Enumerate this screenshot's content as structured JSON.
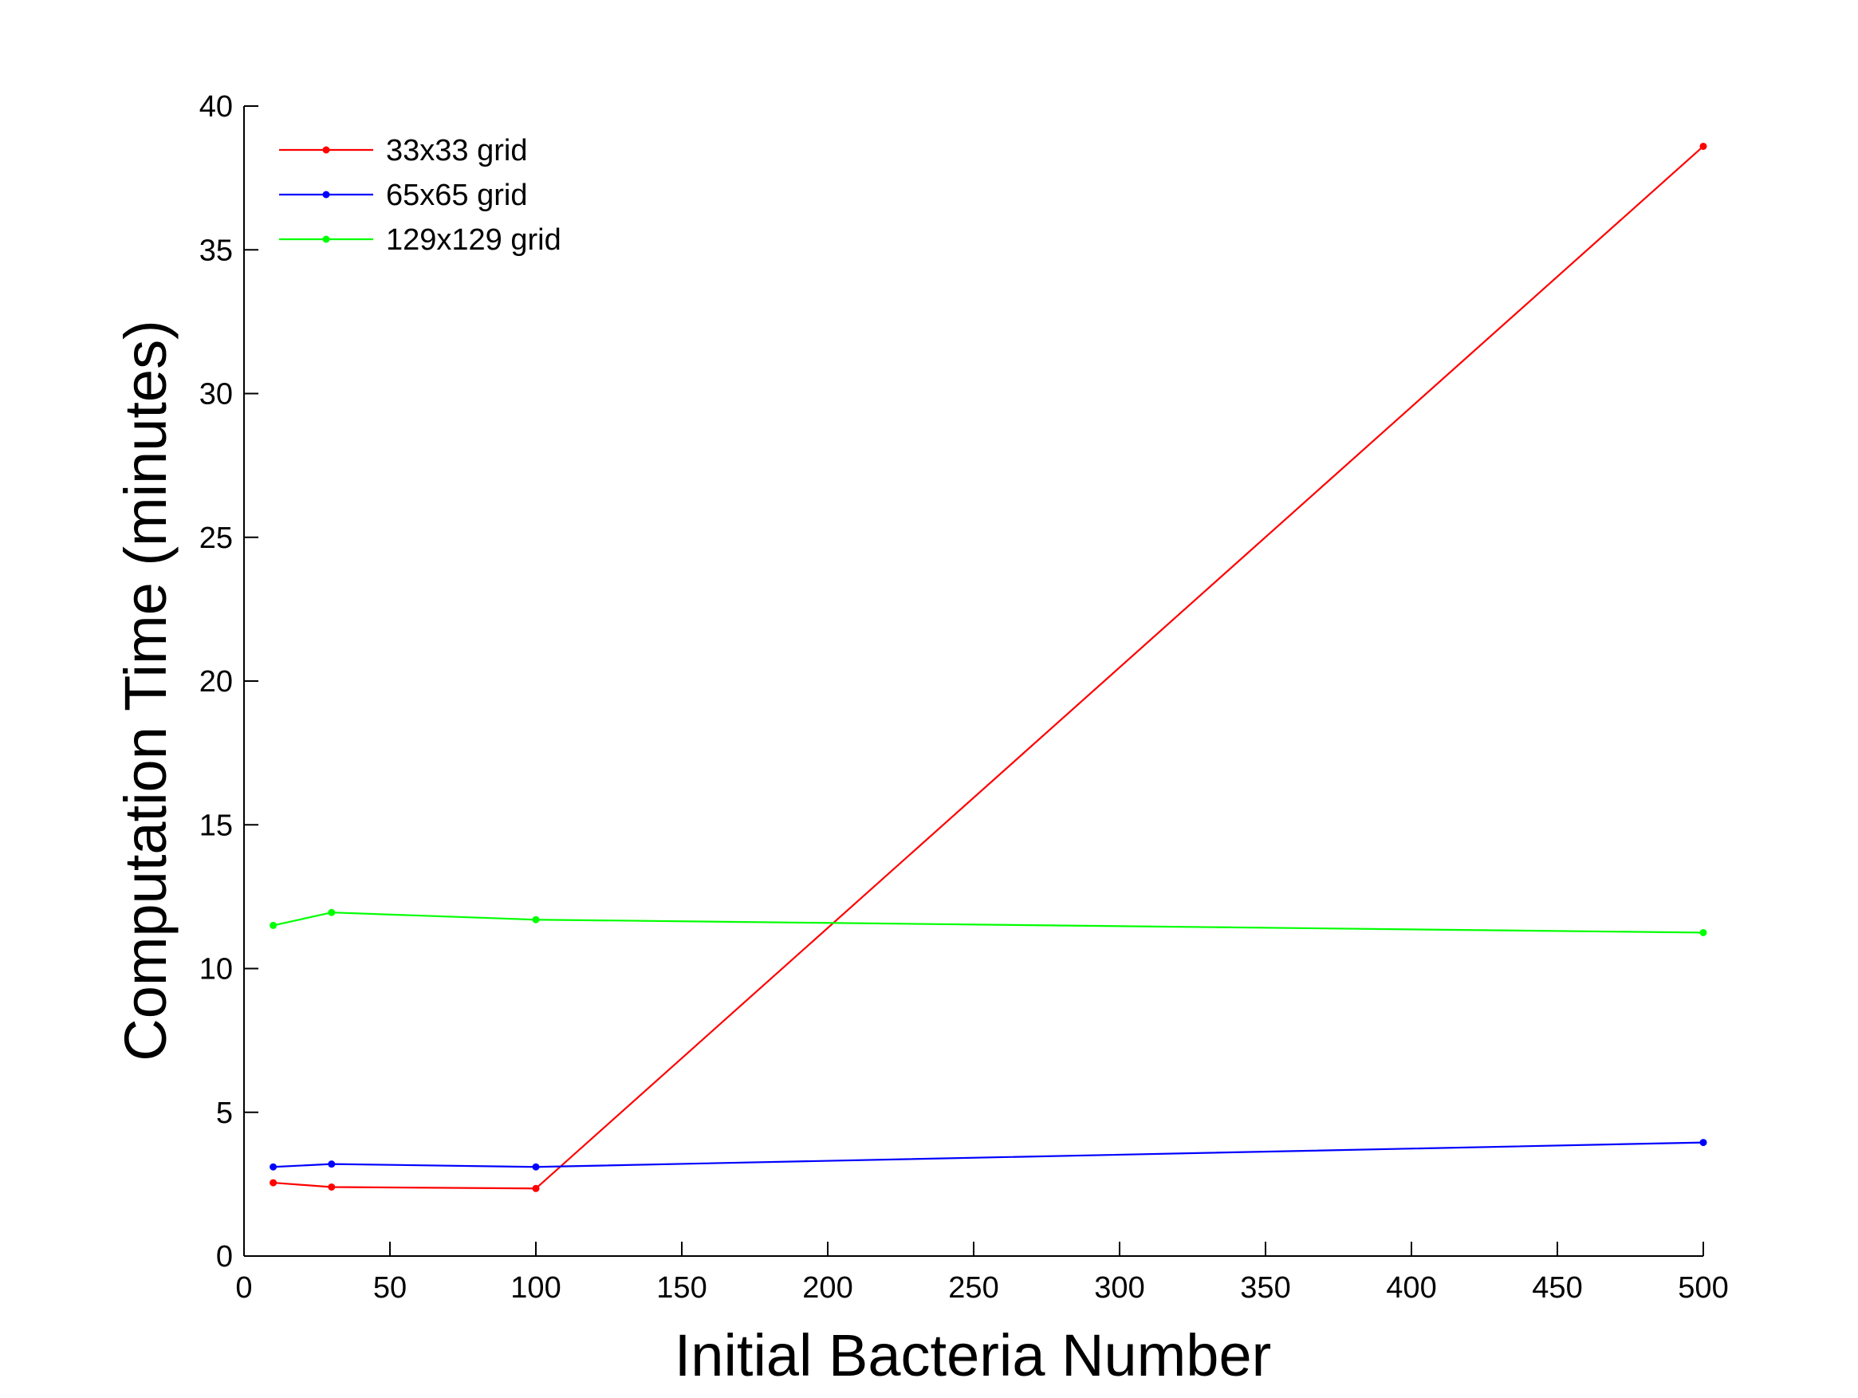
{
  "chart_data": {
    "type": "line",
    "xlabel": "Initial Bacteria Number",
    "ylabel": "Computation Time (minutes)",
    "xlim": [
      0,
      500
    ],
    "ylim": [
      0,
      40
    ],
    "x_ticks": [
      0,
      50,
      100,
      150,
      200,
      250,
      300,
      350,
      400,
      450,
      500
    ],
    "y_ticks": [
      0,
      5,
      10,
      15,
      20,
      25,
      30,
      35,
      40
    ],
    "grid": false,
    "legend_position": "top-left",
    "series": [
      {
        "name": "33x33 grid",
        "color": "#ff0000",
        "x": [
          10,
          30,
          100,
          500
        ],
        "y": [
          2.55,
          2.4,
          2.35,
          38.6
        ]
      },
      {
        "name": "65x65 grid",
        "color": "#0000ff",
        "x": [
          10,
          30,
          100,
          500
        ],
        "y": [
          3.1,
          3.2,
          3.1,
          3.95
        ]
      },
      {
        "name": "129x129 grid",
        "color": "#00ff00",
        "x": [
          10,
          30,
          100,
          500
        ],
        "y": [
          11.5,
          11.95,
          11.7,
          11.25
        ]
      }
    ]
  }
}
